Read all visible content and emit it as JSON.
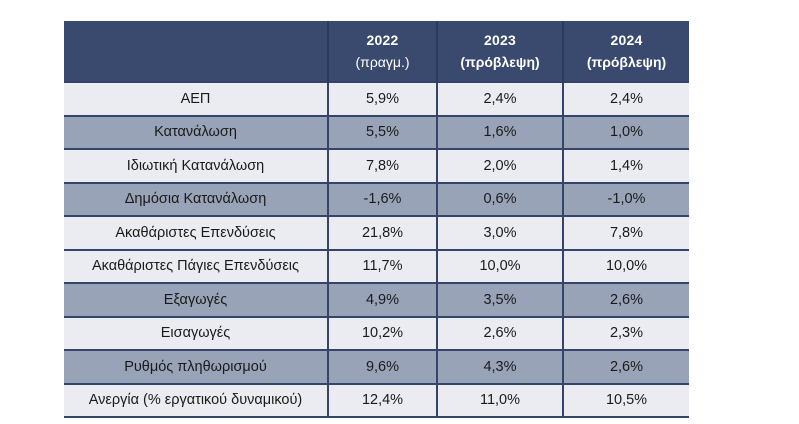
{
  "colors": {
    "header_bg": "#394A6E",
    "header_divider": "#2C3A5C",
    "header_text": "#FFFFFF",
    "row_light": "#EBECF1",
    "row_dark": "#99A3B8",
    "border": "#35446A",
    "body_text": "#1A1A1A"
  },
  "chart_data": {
    "type": "table",
    "title": "",
    "header": [
      {
        "year": "2022",
        "note": "(πραγμ.)",
        "note_bold": false
      },
      {
        "year": "2023",
        "note": "(πρόβλεψη)",
        "note_bold": true
      },
      {
        "year": "2024",
        "note": "(πρόβλεψη)",
        "note_bold": true
      }
    ],
    "rows": [
      {
        "label": "ΑΕΠ",
        "values": [
          "5,9%",
          "2,4%",
          "2,4%"
        ],
        "shade": "light"
      },
      {
        "label": "Κατανάλωση",
        "values": [
          "5,5%",
          "1,6%",
          "1,0%"
        ],
        "shade": "dark"
      },
      {
        "label": "Ιδιωτική Κατανάλωση",
        "values": [
          "7,8%",
          "2,0%",
          "1,4%"
        ],
        "shade": "light"
      },
      {
        "label": "Δημόσια Κατανάλωση",
        "values": [
          "-1,6%",
          "0,6%",
          "-1,0%"
        ],
        "shade": "dark"
      },
      {
        "label": "Ακαθάριστες Επενδύσεις",
        "values": [
          "21,8%",
          "3,0%",
          "7,8%"
        ],
        "shade": "light"
      },
      {
        "label": "Ακαθάριστες Πάγιες Επενδύσεις",
        "values": [
          "11,7%",
          "10,0%",
          "10,0%"
        ],
        "shade": "light"
      },
      {
        "label": "Εξαγωγές",
        "values": [
          "4,9%",
          "3,5%",
          "2,6%"
        ],
        "shade": "dark"
      },
      {
        "label": "Εισαγωγές",
        "values": [
          "10,2%",
          "2,6%",
          "2,3%"
        ],
        "shade": "light"
      },
      {
        "label": "Ρυθμός πληθωρισμού",
        "values": [
          "9,6%",
          "4,3%",
          "2,6%"
        ],
        "shade": "dark"
      },
      {
        "label": "Ανεργία (% εργατικού δυναμικού)",
        "values": [
          "12,4%",
          "11,0%",
          "10,5%"
        ],
        "shade": "light"
      }
    ]
  }
}
